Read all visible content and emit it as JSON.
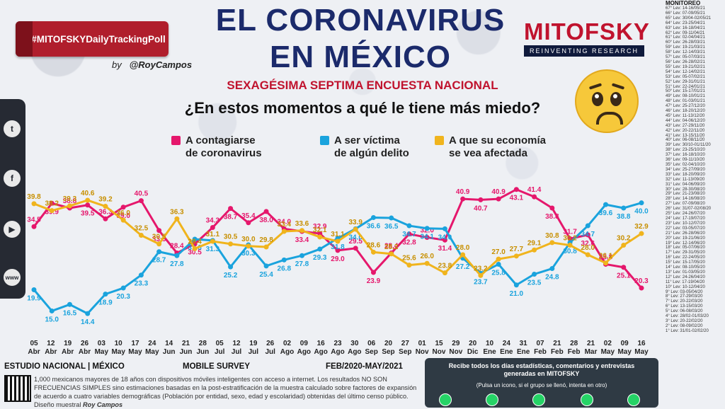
{
  "header": {
    "hashtag": "#MITOFSKYDailyTrackingPoll",
    "by": "by",
    "author": "@RoyCampos",
    "title_line1": "EL CORONAVIRUS",
    "title_line2": "EN MÉXICO",
    "subtitle": "SEXAGÉSIMA SEPTIMA ENCUESTA NACIONAL",
    "question": "¿En estos momentos a qué le tiene más miedo?",
    "brand": "MITOFSKY",
    "brand_tagline": "REINVENTING RESEARCH"
  },
  "icons": [
    "twitter-icon",
    "facebook-icon",
    "youtube-icon",
    "web-icon",
    "worried-face-icon",
    "qr-code-icon",
    "whatsapp-icon"
  ],
  "colors": {
    "series1": "#e5176c",
    "series2": "#1aa3dd",
    "series3": "#f0b41d",
    "title": "#1b2a6b",
    "accent": "#c0132e"
  },
  "chart_data": {
    "type": "line",
    "x_top": [
      "05",
      "12",
      "19",
      "26",
      "03",
      "10",
      "17",
      "24",
      "31",
      "07",
      "14",
      "21",
      "28",
      "05",
      "12",
      "19",
      "26",
      "02",
      "09",
      "16",
      "23",
      "30",
      "06",
      "20",
      "27",
      "04",
      "18",
      "01",
      "15",
      "29",
      "14",
      "28",
      "11",
      "02",
      "16",
      "23",
      "30"
    ],
    "x_bottom": [
      "Abr",
      "Abr",
      "Abr",
      "Abr",
      "May",
      "May",
      "May",
      "May",
      "May",
      "Jun",
      "Jun",
      "Jun",
      "Jun",
      "Jul",
      "Jul",
      "Jul",
      "Jul",
      "Ago",
      "Ago",
      "Ago",
      "Ago",
      "Ago",
      "Sep",
      "Sep",
      "Sep",
      "Oct",
      "Oct",
      "Nov",
      "Nov",
      "Nov",
      "Dic",
      "Dic",
      "Ene",
      "Feb",
      "Feb",
      "Mar",
      "Mar"
    ],
    "x_labels": [
      [
        "05",
        "Abr"
      ],
      [
        "12",
        "Abr"
      ],
      [
        "19",
        "Abr"
      ],
      [
        "26",
        "Abr"
      ],
      [
        "03",
        "May"
      ],
      [
        "10",
        "May"
      ],
      [
        "17",
        "May"
      ],
      [
        "24",
        "May"
      ],
      [
        "31",
        "May"
      ],
      [
        "07",
        "Jun"
      ],
      [
        "14",
        "Jun"
      ],
      [
        "21",
        "Jun"
      ],
      [
        "28",
        "Jun"
      ],
      [
        "05",
        "Jul"
      ],
      [
        "12",
        "Jul"
      ],
      [
        "19",
        "Jul"
      ],
      [
        "26",
        "Jul"
      ],
      [
        "02",
        "Ago"
      ],
      [
        "09",
        "Ago"
      ],
      [
        "16",
        "Ago"
      ],
      [
        "23",
        "Ago"
      ],
      [
        "30",
        "Ago"
      ],
      [
        "06",
        "Sep"
      ],
      [
        "20",
        "Sep"
      ],
      [
        "27",
        "Sep"
      ],
      [
        "04",
        "Oct"
      ],
      [
        "18",
        "Oct"
      ],
      [
        "01",
        "Nov"
      ],
      [
        "15",
        "Nov"
      ],
      [
        "29",
        "Nov"
      ],
      [
        "14",
        "Dic"
      ],
      [
        "28",
        "Dic"
      ],
      [
        "11",
        "Ene"
      ],
      [
        "31",
        "Ene"
      ],
      [
        "07",
        "Feb"
      ],
      [
        "21",
        "Feb"
      ],
      [
        "28",
        "Feb"
      ],
      [
        "21",
        "Mar"
      ],
      [
        "02",
        "May"
      ],
      [
        "09",
        "May"
      ],
      [
        "16",
        "May"
      ]
    ],
    "x_display": [
      [
        "05",
        "Abr"
      ],
      [
        "12",
        "Abr"
      ],
      [
        "19",
        "Abr"
      ],
      [
        "26",
        "Abr"
      ],
      [
        "03",
        "May"
      ],
      [
        "10",
        "May"
      ],
      [
        "17",
        "May"
      ],
      [
        "24",
        "May"
      ],
      [
        "31",
        "May"
      ],
      [
        "07",
        "Jun"
      ],
      [
        "14",
        "Jun"
      ],
      [
        "21",
        "Jun"
      ],
      [
        "28",
        "Jun"
      ],
      [
        "05",
        "Jul"
      ],
      [
        "12",
        "Jul"
      ],
      [
        "19",
        "Jul"
      ],
      [
        "26",
        "Jul"
      ],
      [
        "02",
        "Ago"
      ],
      [
        "09",
        "Ago"
      ],
      [
        "16",
        "Ago"
      ],
      [
        "23",
        "Ago"
      ],
      [
        "30",
        "Ago"
      ],
      [
        "06",
        "Sep"
      ],
      [
        "20",
        "Sep"
      ],
      [
        "27",
        "Sep"
      ],
      [
        "04",
        "Oct"
      ],
      [
        "18",
        "Oct"
      ],
      [
        "01",
        "Nov"
      ],
      [
        "15",
        "Nov"
      ],
      [
        "29",
        "Nov"
      ],
      [
        "14",
        "Dic"
      ],
      [
        "28",
        "Dic"
      ],
      [
        "11",
        "Ene"
      ],
      [
        "31",
        "Ene"
      ],
      [
        "07",
        "Feb"
      ],
      [
        "21",
        "Feb"
      ],
      [
        "28",
        "Feb"
      ],
      [
        "21",
        "Mar"
      ],
      [
        "02",
        "May"
      ],
      [
        "09",
        "May"
      ],
      [
        "16",
        "May"
      ]
    ],
    "axis_ticks": [
      [
        "05",
        "Abr"
      ],
      [
        "12",
        "Abr"
      ],
      [
        "19",
        "Abr"
      ],
      [
        "26",
        "Abr"
      ],
      [
        "03",
        "May"
      ],
      [
        "10",
        "May"
      ],
      [
        "17",
        "May"
      ],
      [
        "24",
        "May"
      ],
      [
        "31",
        "May"
      ],
      [
        "07",
        "Jun"
      ],
      [
        "14",
        "Jun"
      ],
      [
        "21",
        "Jun"
      ],
      [
        "28",
        "Jun"
      ],
      [
        "05",
        "Jul"
      ],
      [
        "12",
        "Jul"
      ],
      [
        "19",
        "Jul"
      ],
      [
        "26",
        "Jul"
      ],
      [
        "02",
        "Ago"
      ],
      [
        "09",
        "Ago"
      ],
      [
        "16",
        "Ago"
      ],
      [
        "23",
        "Ago"
      ],
      [
        "30",
        "Ago"
      ],
      [
        "06",
        "Sep"
      ],
      [
        "20",
        "Sep"
      ],
      [
        "27",
        "Sep"
      ],
      [
        "04",
        "Oct"
      ],
      [
        "18",
        "Oct"
      ],
      [
        "01",
        "Nov"
      ],
      [
        "15",
        "Nov"
      ],
      [
        "29",
        "Nov"
      ],
      [
        "14",
        "Dic"
      ],
      [
        "28",
        "Dic"
      ],
      [
        "11",
        "Ene"
      ],
      [
        "31",
        "Ene"
      ],
      [
        "07",
        "Feb"
      ],
      [
        "21",
        "Feb"
      ],
      [
        "28",
        "Feb"
      ],
      [
        "21",
        "Mar"
      ],
      [
        "02",
        "May"
      ],
      [
        "09",
        "May"
      ],
      [
        "16",
        "May"
      ]
    ],
    "ticks": [
      [
        "05",
        "Abr"
      ],
      [
        "12",
        "Abr"
      ],
      [
        "19",
        "Abr"
      ],
      [
        "26",
        "Abr"
      ],
      [
        "03",
        "May"
      ],
      [
        "10",
        "May"
      ],
      [
        "17",
        "May"
      ],
      [
        "24",
        "May"
      ],
      [
        "14",
        "Jun"
      ],
      [
        "21",
        "Jun"
      ],
      [
        "28",
        "Jun"
      ],
      [
        "05",
        "Jul"
      ],
      [
        "12",
        "Jul"
      ],
      [
        "19",
        "Jul"
      ],
      [
        "26",
        "Jul"
      ],
      [
        "02",
        "Ago"
      ],
      [
        "09",
        "Ago"
      ],
      [
        "16",
        "Ago"
      ],
      [
        "23",
        "Ago"
      ],
      [
        "30",
        "Ago"
      ],
      [
        "06",
        "Sep"
      ],
      [
        "20",
        "Sep"
      ],
      [
        "27",
        "Sep"
      ],
      [
        "01",
        "Nov"
      ],
      [
        "29",
        "Nov"
      ],
      [
        "20",
        "Dic"
      ],
      [
        "10",
        "Ene"
      ],
      [
        "24",
        "Ene"
      ],
      [
        "31",
        "Ene"
      ],
      [
        "21",
        "Feb"
      ],
      [
        "07",
        "Feb"
      ],
      [
        "28",
        "Feb"
      ],
      [
        "21",
        "Mar"
      ],
      [
        "21",
        "Mar"
      ],
      [
        "02",
        "May"
      ],
      [
        "09",
        "May"
      ],
      [
        "16",
        "May"
      ]
    ],
    "labels_top": [
      "05",
      "12",
      "19",
      "26",
      "03",
      "10",
      "17",
      "24",
      "14",
      "21",
      "28",
      "05",
      "12",
      "19",
      "26",
      "02",
      "09",
      "16",
      "23",
      "30",
      "06",
      "20",
      "27",
      "01",
      "15",
      "29",
      "20",
      "10",
      "24",
      "31",
      "07",
      "21",
      "28",
      "21",
      "02",
      "09",
      "16"
    ],
    "labels_bottom": [
      "Abr",
      "Abr",
      "Abr",
      "Abr",
      "May",
      "May",
      "May",
      "May",
      "Jun",
      "Jun",
      "Jun",
      "Jul",
      "Jul",
      "Jul",
      "Jul",
      "Ago",
      "Ago",
      "Ago",
      "Ago",
      "Ago",
      "Sep",
      "Sep",
      "Sep",
      "Nov",
      "Nov",
      "Nov",
      "Dic",
      "Ene",
      "Ene",
      "Ene",
      "Feb",
      "Feb",
      "Feb",
      "Mar",
      "May",
      "May",
      "May"
    ],
    "x_day": [
      "05",
      "12",
      "19",
      "26",
      "03",
      "10",
      "17",
      "24",
      "14",
      "21",
      "28",
      "05",
      "12",
      "19",
      "26",
      "02",
      "09",
      "16",
      "23",
      "30",
      "06",
      "20",
      "27",
      "01",
      "15",
      "29",
      "20",
      "10",
      "24",
      "31",
      "07",
      "21",
      "28",
      "21",
      "02",
      "09",
      "16"
    ],
    "x_month": [
      "Abr",
      "Abr",
      "Abr",
      "Abr",
      "May",
      "May",
      "May",
      "May",
      "Jun",
      "Jun",
      "Jun",
      "Jul",
      "Jul",
      "Jul",
      "Jul",
      "Ago",
      "Ago",
      "Ago",
      "Ago",
      "Ago",
      "Sep",
      "Sep",
      "Sep",
      "Nov",
      "Nov",
      "Nov",
      "Dic",
      "Ene",
      "Ene",
      "Ene",
      "Feb",
      "Feb",
      "Feb",
      "Mar",
      "May",
      "May",
      "May"
    ],
    "series": [
      {
        "name": "A contagiarse de coronavirus",
        "color": "#e5176c",
        "values": [
          34.5,
          39.9,
          38.8,
          39.5,
          36.3,
          39.0,
          40.5,
          33.6,
          28.4,
          30.5,
          34.3,
          38.7,
          35.4,
          38.0,
          34.0,
          33.4,
          32.9,
          29.0,
          29.5,
          23.9,
          28.4,
          32.8,
          32.0,
          31.4,
          40.9,
          40.7,
          40.9,
          43.1,
          41.4,
          38.8,
          31.7,
          32.6,
          25.8,
          25.1,
          20.3,
          null,
          null
        ]
      },
      {
        "name": "A ser víctima de algún delito",
        "color": "#1aa3dd",
        "values": [
          19.9,
          15.0,
          16.5,
          14.4,
          18.9,
          20.3,
          23.3,
          28.7,
          27.8,
          31.6,
          31.3,
          25.2,
          30.3,
          25.4,
          26.8,
          27.8,
          29.3,
          31.8,
          34.0,
          36.6,
          36.5,
          34.7,
          34.1,
          34.0,
          27.2,
          23.7,
          25.8,
          21.0,
          23.5,
          24.8,
          30.8,
          34.7,
          39.6,
          38.8,
          40.0,
          null,
          null
        ]
      },
      {
        "name": "A que su economía se vea afectada",
        "color": "#f0b41d",
        "values": [
          39.8,
          38.2,
          39.3,
          40.6,
          39.2,
          36.0,
          32.5,
          30.5,
          36.3,
          29.4,
          31.1,
          30.5,
          30.0,
          29.8,
          33.4,
          33.6,
          32.1,
          31.1,
          33.9,
          28.6,
          28.2,
          25.6,
          26.0,
          23.8,
          28.0,
          23.2,
          27.0,
          27.7,
          29.1,
          30.8,
          30.2,
          28.0,
          26.1,
          30.2,
          32.9,
          null,
          null
        ]
      }
    ],
    "ylim": [
      10,
      46
    ],
    "footer_left": "ESTUDIO NACIONAL | MÉXICO",
    "footer_mid": "MOBILE SURVEY",
    "footer_period": "FEB/2020-MAY/2021"
  },
  "plot": {
    "x": [
      {
        "d": "05",
        "m": "Abr"
      },
      {
        "d": "12",
        "m": "Abr"
      },
      {
        "d": "19",
        "m": "Abr"
      },
      {
        "d": "26",
        "m": "Abr"
      },
      {
        "d": "03",
        "m": "May"
      },
      {
        "d": "10",
        "m": "May"
      },
      {
        "d": "17",
        "m": "May"
      },
      {
        "d": "24",
        "m": "May"
      },
      {
        "d": "14",
        "m": "Jun"
      },
      {
        "d": "21",
        "m": "Jun"
      },
      {
        "d": "28",
        "m": "Jun"
      },
      {
        "d": "05",
        "m": "Jul"
      },
      {
        "d": "12",
        "m": "Jul"
      },
      {
        "d": "19",
        "m": "Jul"
      },
      {
        "d": "26",
        "m": "Jul"
      },
      {
        "d": "02",
        "m": "Ago"
      },
      {
        "d": "09",
        "m": "Ago"
      },
      {
        "d": "16",
        "m": "Ago"
      },
      {
        "d": "23",
        "m": "Ago"
      },
      {
        "d": "30",
        "m": "Ago"
      },
      {
        "d": "06",
        "m": "Sep"
      },
      {
        "d": "20",
        "m": "Sep"
      },
      {
        "d": "27",
        "m": "Sep"
      },
      {
        "d": "01",
        "m": "Nov"
      },
      {
        "d": "15",
        "m": "Nov"
      },
      {
        "d": "29",
        "m": "Nov"
      },
      {
        "d": "20",
        "m": "Dic"
      },
      {
        "d": "10",
        "m": "Ene"
      },
      {
        "d": "24",
        "m": "Ene"
      },
      {
        "d": "31",
        "m": "Ene"
      },
      {
        "d": "07",
        "m": "Feb"
      },
      {
        "d": "21",
        "m": "Feb"
      },
      {
        "d": "28",
        "m": "Feb"
      },
      {
        "d": "21",
        "m": "Mar"
      },
      {
        "d": "02",
        "m": "May"
      },
      {
        "d": "09",
        "m": "May"
      },
      {
        "d": "16",
        "m": "May"
      }
    ]
  },
  "legend": [
    {
      "line1": "A contagiarse",
      "line2": "de coronavirus"
    },
    {
      "line1": "A ser víctima",
      "line2": "de algún delito"
    },
    {
      "line1": "A que su economía",
      "line2": "se vea afectada"
    }
  ],
  "footer": {
    "study": "ESTUDIO NACIONAL | MÉXICO",
    "survey": "MOBILE SURVEY",
    "period": "FEB/2020-MAY/2021",
    "note": "1,000 mexicanos mayores de 18 años con dispositivos móviles inteligentes con acceso a internet. Los resultados NO SON FRECUENCIAS SIMPLES sino estimaciones basadas en la post-estratificación de la muestra calculado sobre factores de expansión de acuerdo a cuatro variables demográficas (Población por entidad, sexo, edad y escolaridad) obtenidas del último censo público. Diseño muestral",
    "signature": "Roy Campos"
  },
  "whatsapp": {
    "line1": "Recibe todos los días estadísticas, comentarios y entrevistas",
    "line2": "generadas en MITOFSKY",
    "hint": "(Pulsa un icono, si el grupo se llenó, intenta en otro)"
  },
  "monitor": {
    "title": "MONITOREO",
    "rows": [
      "67° Lev: 14-16/05/21",
      "66° Lev: 07-09/05/21",
      "65° Lev: 30/04-02/05/21",
      "64° Lev: 23-25/04/21",
      "63° Lev: 16-18/04/21",
      "62° Lev: 09-11/04/21",
      "61° Lev: 02-04/04/21",
      "60° Lev: 26-28/03/21",
      "59° Lev: 19-21/03/21",
      "58° Lev: 12-14/03/21",
      "57° Lev: 05-07/03/21",
      "56° Lev: 26-28/02/21",
      "55° Lev: 19-21/02/21",
      "54° Lev: 12-14/02/21",
      "53° Lev: 05-07/02/21",
      "52° Lev: 29-31/01/21",
      "51° Lev: 22-24/01/21",
      "50° Lev: 15-17/01/21",
      "49° Lev: 08-10/01/21",
      "48° Lev: 01-03/01/21",
      "47° Lev: 25-27/12/20",
      "46° Lev: 18-20/12/20",
      "45° Lev: 11-13/12/20",
      "44° Lev: 04-06/12/20",
      "43° Lev: 27-29/11/20",
      "42° Lev: 20-22/11/20",
      "41° Lev: 13-15/11/20",
      "40° Lev: 06-08/11/20",
      "39° Lev: 30/10-01/11/20",
      "38° Lev: 23-25/10/20",
      "37° Lev: 16-18/10/20",
      "36° Lev: 09-11/10/20",
      "35° Lev: 02-04/10/20",
      "34° Lev: 25-27/09/20",
      "33° Lev: 18-20/09/20",
      "32° Lev: 11-13/09/20",
      "31° Lev: 04-06/09/20",
      "30° Lev: 28-30/08/20",
      "29° Lev: 21-23/08/20",
      "28° Lev: 14-16/08/20",
      "27° Lev: 07-09/08/20",
      "26° Lev: 31/07-02/08/20",
      "25° Lev: 24-26/07/20",
      "24° Lev: 17-19/07/20",
      "23° Lev: 10-12/07/20",
      "22° Lev: 03-05/07/20",
      "21° Lev: 26-28/06/20",
      "20° Lev: 19-21/06/20",
      "19° Lev: 12-14/06/20",
      "18° Lev: 05-07/06/20",
      "17° Lev: 29-31/05/20",
      "16° Lev: 22-24/05/20",
      "15° Lev: 15-17/05/20",
      "14° Lev: 08-10/05/20",
      "13° Lev: 01-03/05/20",
      "12° Lev: 24-26/04/20",
      "11° Lev: 17-19/04/20",
      "10° Lev: 10-12/04/20",
      "9° Lev: 03-05/04/20",
      "8° Lev: 27-29/03/20",
      "7° Lev: 20-22/03/20",
      "6° Lev: 13-15/03/20",
      "5° Lev: 06-08/03/20",
      "4° Lev: 28/02-01/03/20",
      "3° Lev: 20-22/02/20",
      "2° Lev: 08-09/02/20",
      "1° Lev: 31/01-02/02/20"
    ]
  }
}
